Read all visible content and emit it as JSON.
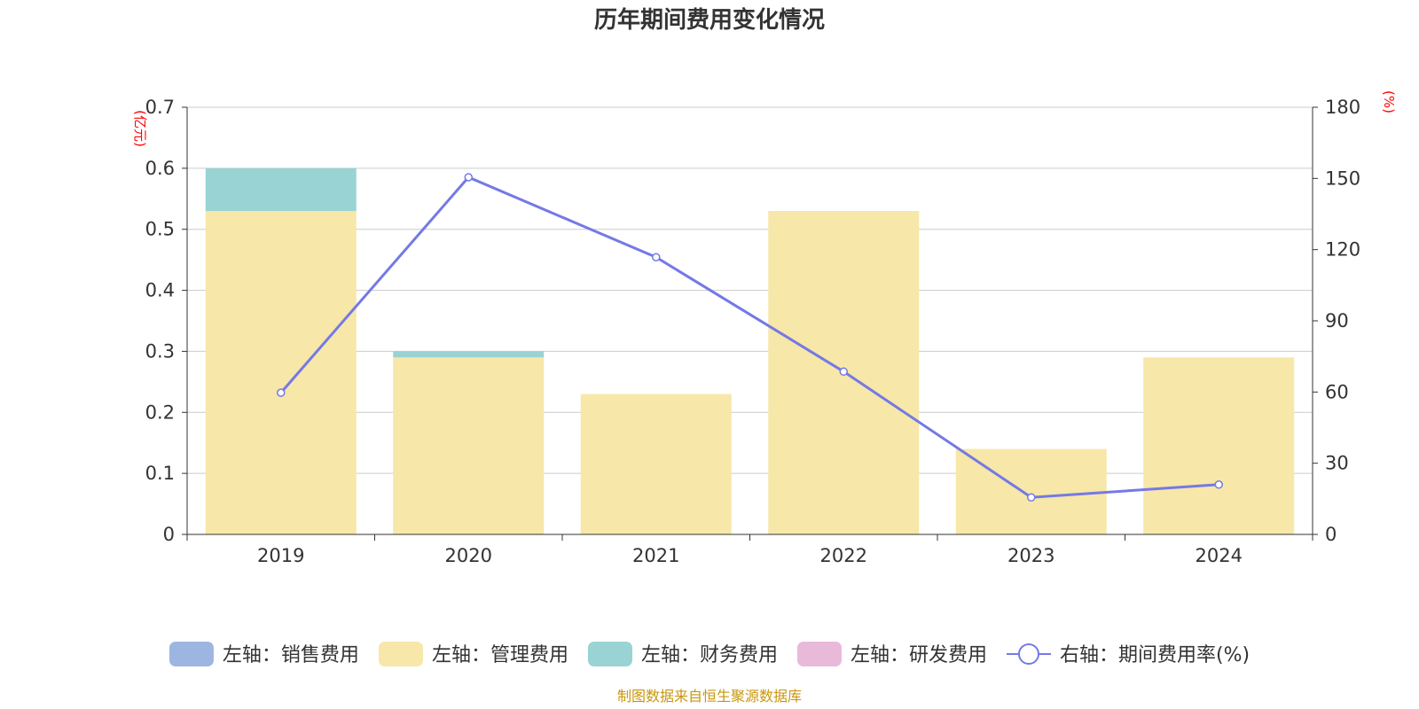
{
  "chart_data": {
    "type": "bar",
    "title": "历年期间费用变化情况",
    "categories": [
      "2019",
      "2020",
      "2021",
      "2022",
      "2023",
      "2024"
    ],
    "stacked": true,
    "left_axis": {
      "unit": "(亿元)",
      "ylim": [
        0,
        0.7
      ],
      "ticks": [
        "0",
        "0.1",
        "0.2",
        "0.3",
        "0.4",
        "0.5",
        "0.6",
        "0.7"
      ]
    },
    "right_axis": {
      "unit": "(%)",
      "ylim": [
        0,
        180
      ],
      "ticks": [
        "0",
        "30",
        "60",
        "90",
        "120",
        "150",
        "180"
      ]
    },
    "series": [
      {
        "name": "左轴：销售费用",
        "type": "bar",
        "axis": "left",
        "color": "#9db6e1",
        "values": [
          0,
          0,
          0,
          0,
          0,
          0
        ]
      },
      {
        "name": "左轴：管理费用",
        "type": "bar",
        "axis": "left",
        "color": "#f7e7a8",
        "values": [
          0.53,
          0.29,
          0.23,
          0.53,
          0.14,
          0.29
        ]
      },
      {
        "name": "左轴：财务费用",
        "type": "bar",
        "axis": "left",
        "color": "#99d3d4",
        "values": [
          0.07,
          0.01,
          0,
          0,
          0,
          0
        ]
      },
      {
        "name": "左轴：研发费用",
        "type": "bar",
        "axis": "left",
        "color": "#e8b9d9",
        "values": [
          0,
          0,
          0,
          0,
          0,
          0
        ]
      },
      {
        "name": "右轴：期间费用率(%)",
        "type": "line",
        "axis": "right",
        "color": "#7479e6",
        "values": [
          59.7,
          150.5,
          116.8,
          68.6,
          15.6,
          21.0
        ]
      }
    ],
    "grid": true,
    "legend_position": "bottom"
  },
  "source": "制图数据来自恒生聚源数据库"
}
